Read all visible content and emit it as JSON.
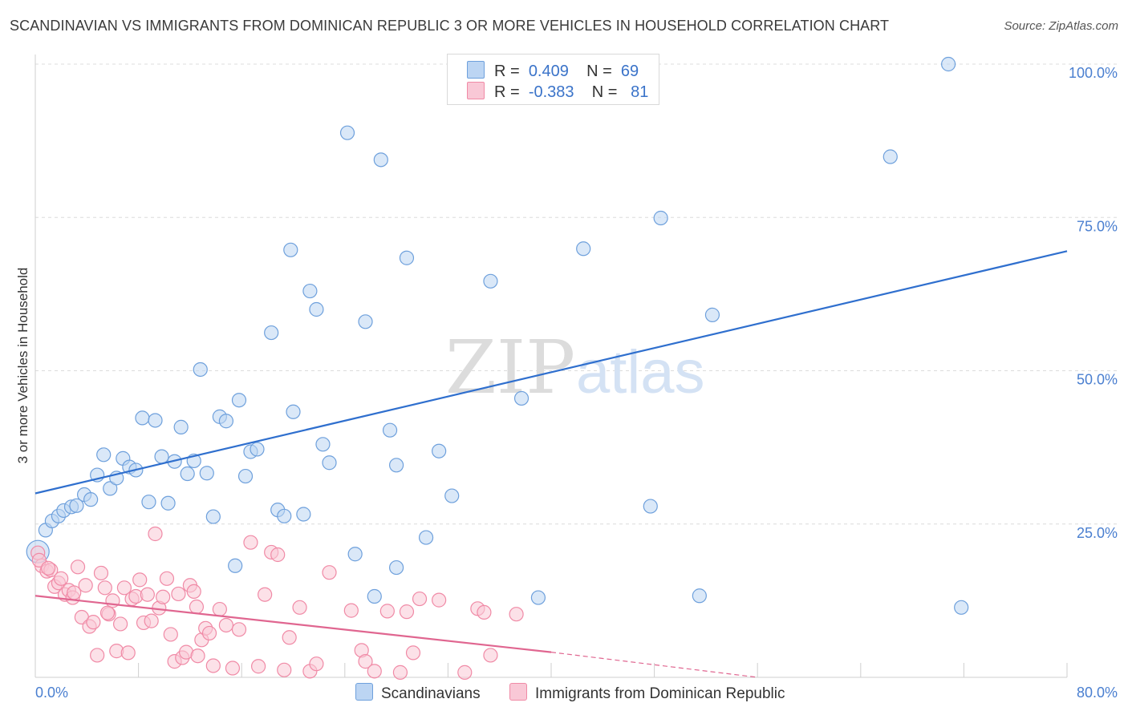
{
  "title": "SCANDINAVIAN VS IMMIGRANTS FROM DOMINICAN REPUBLIC 3 OR MORE VEHICLES IN HOUSEHOLD CORRELATION CHART",
  "source": "Source: ZipAtlas.com",
  "watermark": {
    "zip": "ZIP",
    "atlas": "atlas"
  },
  "legend": {
    "rows": [
      {
        "r_key": "R =",
        "r_value": "0.409",
        "n_key": "N =",
        "n_value": "69",
        "color": "#a8c8f0"
      },
      {
        "r_key": "R =",
        "r_value": "-0.383",
        "n_key": "N =",
        "n_value": "81",
        "color": "#f7b7cb"
      }
    ]
  },
  "bottom_legend": [
    {
      "label": "Scandinavians",
      "color": "#a8c8f0"
    },
    {
      "label": "Immigrants from Dominican Republic",
      "color": "#f7b7cb"
    }
  ],
  "chart_data": {
    "type": "scatter",
    "title": "SCANDINAVIAN VS IMMIGRANTS FROM DOMINICAN REPUBLIC 3 OR MORE VEHICLES IN HOUSEHOLD CORRELATION CHART",
    "xlabel": "",
    "ylabel": "3 or more Vehicles in Household",
    "xlim": [
      0,
      80
    ],
    "ylim": [
      0,
      100
    ],
    "x_tick_labels": [
      "0.0%",
      "80.0%"
    ],
    "y_ticks": [
      25,
      50,
      75,
      100
    ],
    "y_tick_labels": [
      "25.0%",
      "50.0%",
      "75.0%",
      "100.0%"
    ],
    "grid": true,
    "legend_position": "top-center",
    "series": [
      {
        "name": "Scandinavians",
        "color": "#6ea0dc",
        "fill": "#bcd5f3",
        "trend": {
          "x": [
            0,
            80
          ],
          "y": [
            30,
            69.5
          ],
          "color": "#2f6fce"
        },
        "points": [
          [
            0.2,
            20.5
          ],
          [
            0.8,
            24
          ],
          [
            1.3,
            25.5
          ],
          [
            1.8,
            26.3
          ],
          [
            2.2,
            27.2
          ],
          [
            2.8,
            27.8
          ],
          [
            3.2,
            28
          ],
          [
            3.8,
            29.8
          ],
          [
            4.3,
            29
          ],
          [
            4.8,
            33
          ],
          [
            5.3,
            36.3
          ],
          [
            5.8,
            30.8
          ],
          [
            6.3,
            32.5
          ],
          [
            6.8,
            35.7
          ],
          [
            7.3,
            34.3
          ],
          [
            7.8,
            33.8
          ],
          [
            8.3,
            42.3
          ],
          [
            8.8,
            28.6
          ],
          [
            9.3,
            41.9
          ],
          [
            9.8,
            36
          ],
          [
            10.3,
            28.4
          ],
          [
            10.8,
            35.2
          ],
          [
            11.3,
            40.8
          ],
          [
            11.8,
            33.2
          ],
          [
            12.3,
            35.3
          ],
          [
            12.8,
            50.2
          ],
          [
            13.3,
            33.3
          ],
          [
            13.8,
            26.2
          ],
          [
            14.3,
            42.5
          ],
          [
            14.8,
            41.8
          ],
          [
            15.5,
            18.2
          ],
          [
            15.8,
            45.2
          ],
          [
            16.3,
            32.8
          ],
          [
            16.7,
            36.8
          ],
          [
            17.2,
            37.2
          ],
          [
            18.8,
            27.3
          ],
          [
            19.3,
            26.3
          ],
          [
            18.3,
            56.2
          ],
          [
            19.8,
            69.7
          ],
          [
            20.0,
            43.3
          ],
          [
            20.8,
            26.6
          ],
          [
            21.3,
            63
          ],
          [
            21.8,
            60
          ],
          [
            22.3,
            38
          ],
          [
            22.8,
            35
          ],
          [
            24.2,
            88.8
          ],
          [
            24.8,
            20.1
          ],
          [
            25.6,
            58
          ],
          [
            26.3,
            13.2
          ],
          [
            26.8,
            84.4
          ],
          [
            27.5,
            40.3
          ],
          [
            28.0,
            17.9
          ],
          [
            28.0,
            34.6
          ],
          [
            28.8,
            68.4
          ],
          [
            30.3,
            22.8
          ],
          [
            31.3,
            36.9
          ],
          [
            32.3,
            29.6
          ],
          [
            35.3,
            64.6
          ],
          [
            37.7,
            45.5
          ],
          [
            39.0,
            13
          ],
          [
            40.1,
            100
          ],
          [
            42.5,
            69.9
          ],
          [
            47.7,
            27.9
          ],
          [
            48.5,
            74.9
          ],
          [
            51.5,
            13.3
          ],
          [
            52.5,
            59.1
          ],
          [
            66.3,
            84.9
          ],
          [
            70.8,
            100
          ],
          [
            71.8,
            11.4
          ]
        ]
      },
      {
        "name": "Immigrants from Dominican Republic",
        "color": "#f08aa6",
        "fill": "#f9c8d6",
        "trend": {
          "x": [
            0,
            40
          ],
          "y": [
            13.3,
            4.1
          ],
          "color": "#e06690",
          "dash_x": [
            40,
            56
          ],
          "dash_y": [
            4.1,
            0
          ]
        },
        "points": [
          [
            0.2,
            20.3
          ],
          [
            0.5,
            18.2
          ],
          [
            0.9,
            17.3
          ],
          [
            1.2,
            17.5
          ],
          [
            1.5,
            14.8
          ],
          [
            1.8,
            15.4
          ],
          [
            2.0,
            16.1
          ],
          [
            2.3,
            13.5
          ],
          [
            2.6,
            14.2
          ],
          [
            2.9,
            13
          ],
          [
            3.3,
            18
          ],
          [
            3.6,
            9.8
          ],
          [
            3.9,
            15
          ],
          [
            4.2,
            8.3
          ],
          [
            4.5,
            9
          ],
          [
            4.8,
            3.6
          ],
          [
            5.1,
            17
          ],
          [
            5.4,
            14.6
          ],
          [
            5.7,
            10.3
          ],
          [
            6.0,
            12.5
          ],
          [
            6.3,
            4.3
          ],
          [
            6.6,
            8.7
          ],
          [
            6.9,
            14.6
          ],
          [
            7.2,
            4
          ],
          [
            7.5,
            12.8
          ],
          [
            7.8,
            13.2
          ],
          [
            8.1,
            15.9
          ],
          [
            8.4,
            8.9
          ],
          [
            8.7,
            13.5
          ],
          [
            9.0,
            9.2
          ],
          [
            9.3,
            23.4
          ],
          [
            9.6,
            11.3
          ],
          [
            9.9,
            13.1
          ],
          [
            10.2,
            16.1
          ],
          [
            10.5,
            7
          ],
          [
            10.8,
            2.6
          ],
          [
            11.1,
            13.6
          ],
          [
            11.4,
            3.2
          ],
          [
            11.7,
            4.1
          ],
          [
            12.0,
            15
          ],
          [
            12.3,
            14
          ],
          [
            12.6,
            3.5
          ],
          [
            12.9,
            6.1
          ],
          [
            13.2,
            8
          ],
          [
            13.5,
            7.2
          ],
          [
            13.8,
            1.9
          ],
          [
            14.3,
            11.1
          ],
          [
            14.8,
            8.5
          ],
          [
            15.3,
            1.5
          ],
          [
            15.8,
            7.8
          ],
          [
            16.7,
            22
          ],
          [
            17.3,
            1.8
          ],
          [
            17.8,
            13.5
          ],
          [
            18.3,
            20.4
          ],
          [
            18.8,
            20
          ],
          [
            19.3,
            1.2
          ],
          [
            19.7,
            6.5
          ],
          [
            20.5,
            11.4
          ],
          [
            21.3,
            1
          ],
          [
            21.8,
            2.2
          ],
          [
            22.8,
            17.1
          ],
          [
            24.5,
            10.9
          ],
          [
            25.3,
            4.4
          ],
          [
            25.6,
            2.6
          ],
          [
            26.3,
            1
          ],
          [
            27.3,
            10.8
          ],
          [
            28.3,
            0.8
          ],
          [
            28.8,
            10.7
          ],
          [
            29.3,
            4
          ],
          [
            29.8,
            12.8
          ],
          [
            31.3,
            12.6
          ],
          [
            33.3,
            0.8
          ],
          [
            34.3,
            11.2
          ],
          [
            34.8,
            10.6
          ],
          [
            35.3,
            3.6
          ],
          [
            37.3,
            10.3
          ],
          [
            0.3,
            19.1
          ],
          [
            1.0,
            17.8
          ],
          [
            3.0,
            13.8
          ],
          [
            5.6,
            10.5
          ],
          [
            12.5,
            11.5
          ]
        ]
      }
    ]
  }
}
